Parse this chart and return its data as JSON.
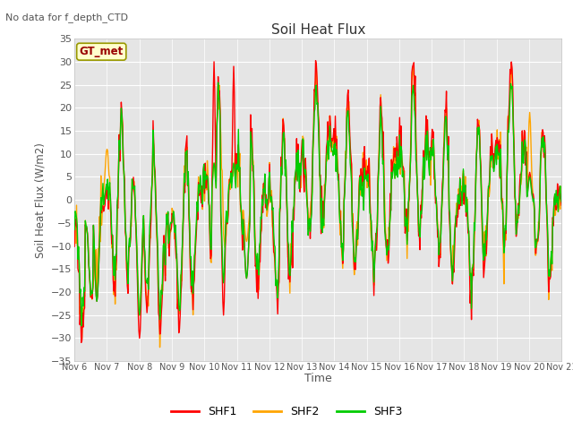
{
  "title": "Soil Heat Flux",
  "subtitle": "No data for f_depth_CTD",
  "ylabel": "Soil Heat Flux (W/m2)",
  "xlabel": "Time",
  "ylim": [
    -35,
    35
  ],
  "yticks": [
    -35,
    -30,
    -25,
    -20,
    -15,
    -10,
    -5,
    0,
    5,
    10,
    15,
    20,
    25,
    30,
    35
  ],
  "xtick_labels": [
    "Nov 6",
    "Nov 7",
    "Nov 8",
    "Nov 9",
    "Nov 10",
    "Nov 11",
    "Nov 12",
    "Nov 13",
    "Nov 14",
    "Nov 15",
    "Nov 16",
    "Nov 17",
    "Nov 18",
    "Nov 19",
    "Nov 20",
    "Nov 21"
  ],
  "legend_label": "GT_met",
  "legend_entries": [
    "SHF1",
    "SHF2",
    "SHF3"
  ],
  "colors": {
    "SHF1": "#ff0000",
    "SHF2": "#ffa500",
    "SHF3": "#00cc00"
  },
  "line_width": 1.0,
  "background_color": "#ffffff",
  "plot_bg_color": "#e5e5e5",
  "grid_color": "#ffffff",
  "annotation_box_color": "#ffffcc",
  "annotation_text_color": "#990000",
  "annotation_border_color": "#999900"
}
